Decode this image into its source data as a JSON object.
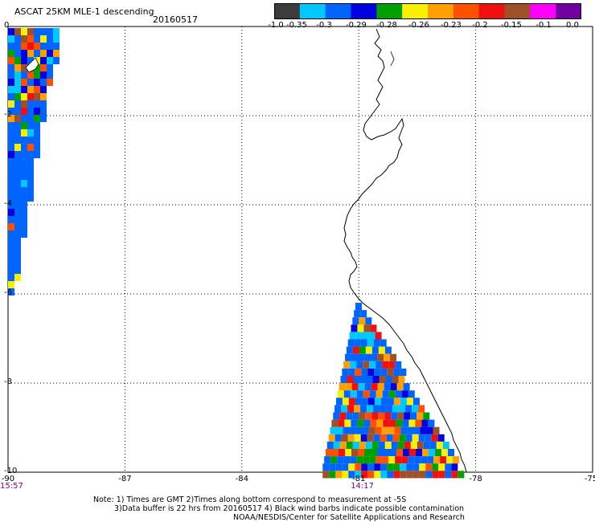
{
  "header": {
    "title": "ASCAT 25KM MLE-1 descending",
    "date": "20160517"
  },
  "colorbar": {
    "colors": [
      "#3c3c3c",
      "#00c8ff",
      "#0064ff",
      "#0000e0",
      "#00a000",
      "#f8f000",
      "#ffa000",
      "#ff5000",
      "#f01010",
      "#a05028",
      "#ff00ff",
      "#7000a0"
    ],
    "labels": [
      "-1.0",
      "-0.35",
      "-0.3",
      "-0.29",
      "-0.28",
      "-0.26",
      "-0.23",
      "-0.2",
      "-0.15",
      "-0.1",
      "0.0"
    ]
  },
  "map": {
    "x_ticks": [
      "-90",
      "-87",
      "-84",
      "-81",
      "-78",
      "-75"
    ],
    "y_ticks": [
      "0",
      "-2",
      "-4",
      "-6",
      "-8",
      "-10"
    ],
    "time_labels": [
      {
        "text": "15:57",
        "lon": -90
      },
      {
        "text": "14:17",
        "lon": -81
      }
    ]
  },
  "notes": {
    "line1": "Note: 1) Times are GMT 2)Times along bottom correspond to measurement at -5S",
    "line2": "3)Data buffer is 22 hrs from 20160517 4) Black wind barbs indicate possible contamination",
    "line3": "NOAA/NESDIS/Center for Satellite Applications and Research"
  }
}
